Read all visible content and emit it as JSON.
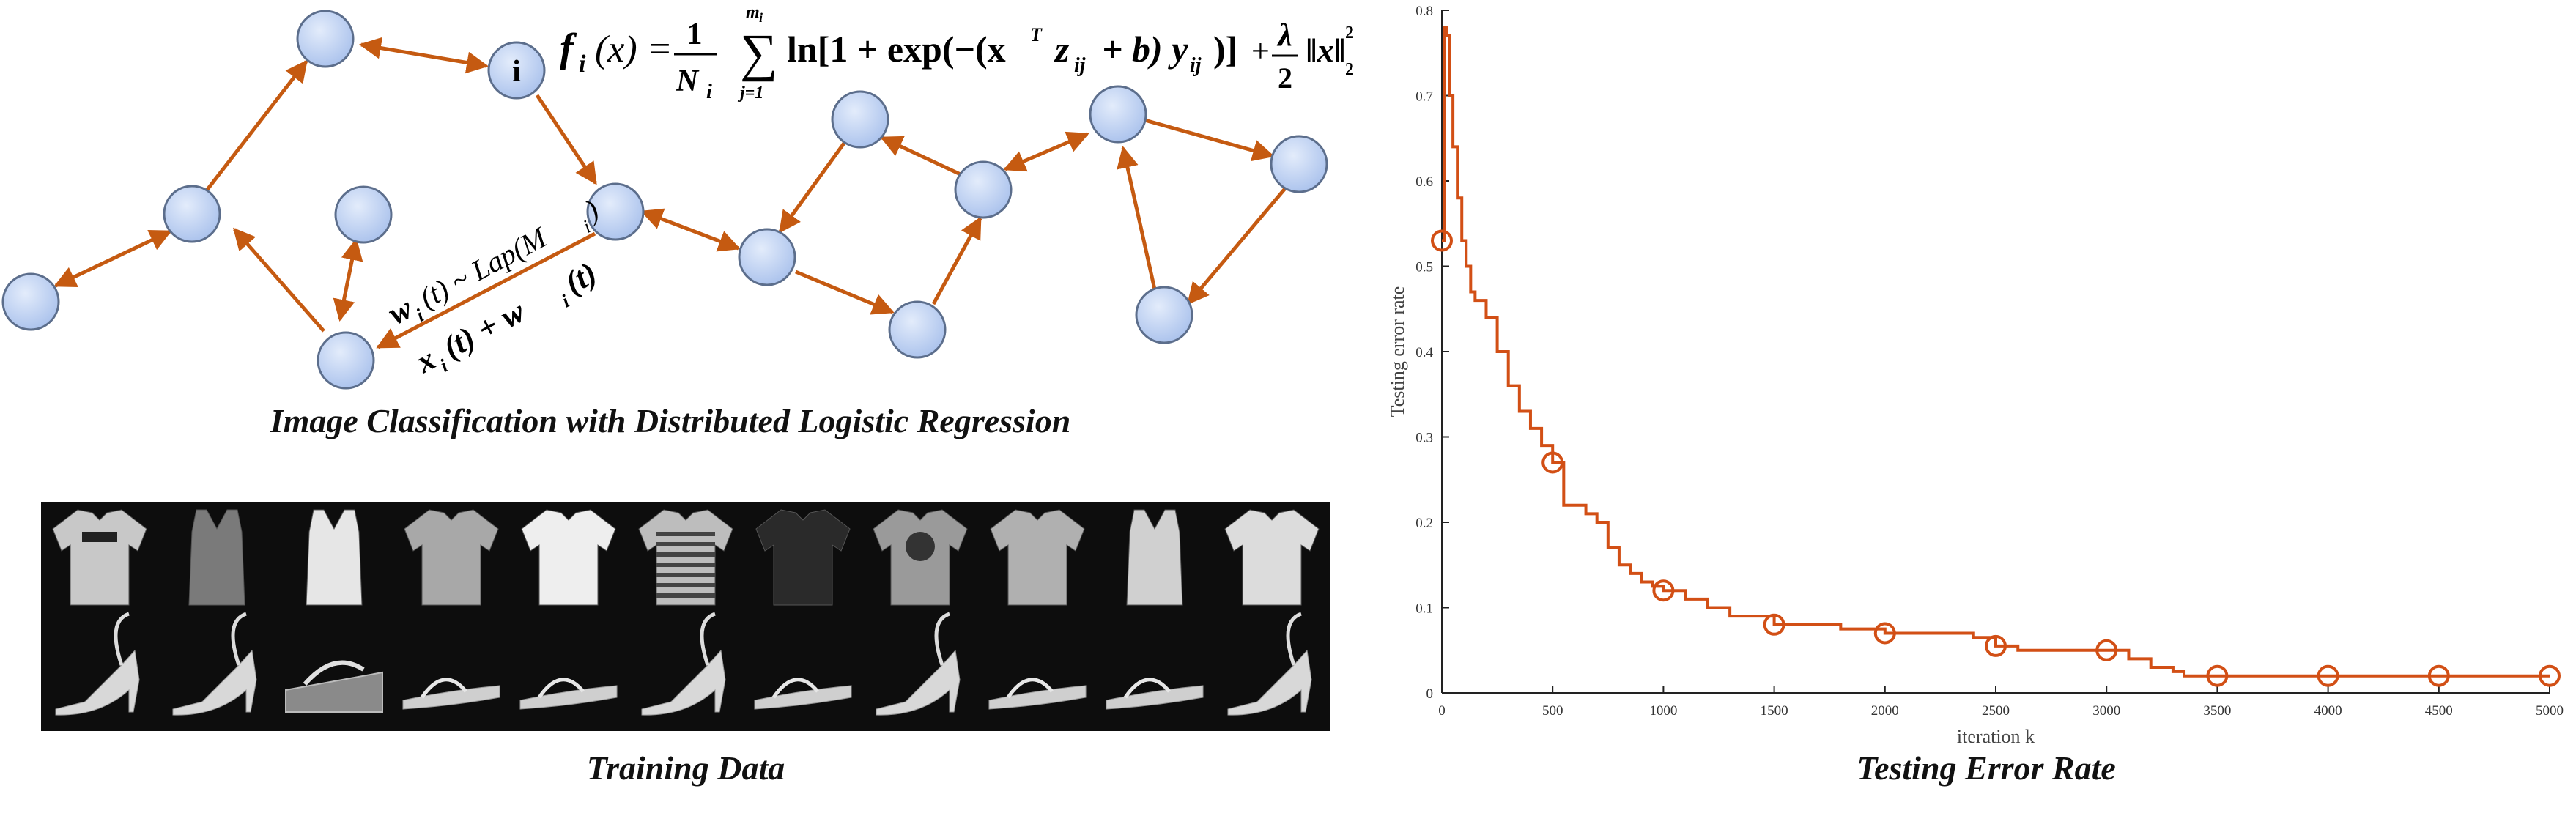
{
  "network": {
    "center_node_label": "i",
    "formula": {
      "lhs_f": "f",
      "lhs_sub": "i",
      "lhs_arg": "(x) =",
      "frac_num": "1",
      "frac_den": "N",
      "frac_den_sub": "i",
      "sum_top": "m",
      "sum_top_sub": "i",
      "sum_bottom": "j=1",
      "body": "ln[1 + exp(−(x",
      "sup_T": "T",
      "z_ij": "z",
      "ij": "ij",
      "plus_b": "+ b) y",
      "close": ")]",
      "reg_plus": "+",
      "lambda": "λ",
      "two": "2",
      "norm": "‖x‖",
      "norm_sup": "2",
      "norm_sub": "2"
    },
    "noise_label": "w",
    "noise_label_rest": "(t) ~ Lap(M",
    "noise_sub": "i",
    "noise_close": ")",
    "state_label": "x",
    "state_label_rest": "(t) + w",
    "state_sub": "i",
    "state_close": "(t)",
    "caption": "Image Classification with Distributed Logistic Regression",
    "node_color": "#b7ccf0",
    "edge_color": "#c55a11"
  },
  "training": {
    "caption": "Training Data",
    "top_row": [
      "t-shirt",
      "tank-top",
      "sleeveless-top",
      "t-shirt",
      "t-shirt",
      "striped-shirt",
      "dark-shirt",
      "logo-shirt",
      "patterned-shirt",
      "patterned-tank",
      "t-shirt"
    ],
    "bottom_row": [
      "high-heel",
      "platform-heel",
      "wedge",
      "sandal",
      "flat-sandal",
      "strappy-heel",
      "sandal",
      "heel",
      "thong-sandal",
      "flat",
      "heel"
    ]
  },
  "chart_caption": "Testing Error Rate",
  "chart_data": {
    "type": "line",
    "title": "",
    "xlabel": "iteration k",
    "ylabel": "Testing error rate",
    "xlim": [
      0,
      5000
    ],
    "ylim": [
      0,
      0.8
    ],
    "xticks": [
      0,
      500,
      1000,
      1500,
      2000,
      2500,
      3000,
      3500,
      4000,
      4500,
      5000
    ],
    "yticks": [
      0,
      0.1,
      0.2,
      0.3,
      0.4,
      0.5,
      0.6,
      0.7,
      0.8
    ],
    "color": "#d24f15",
    "series": [
      {
        "x": [
          0,
          10,
          20,
          35,
          50,
          70,
          90,
          110,
          130,
          150,
          200,
          250,
          300,
          350,
          400,
          450,
          500,
          550,
          600,
          650,
          700,
          750,
          800,
          850,
          900,
          950,
          1000,
          1100,
          1200,
          1300,
          1400,
          1500,
          1600,
          1800,
          2000,
          2200,
          2400,
          2500,
          2600,
          2800,
          3000,
          3100,
          3200,
          3300,
          3350,
          3500,
          4000,
          4500,
          5000
        ],
        "y": [
          0.53,
          0.78,
          0.77,
          0.7,
          0.64,
          0.58,
          0.53,
          0.5,
          0.47,
          0.46,
          0.44,
          0.4,
          0.36,
          0.33,
          0.31,
          0.29,
          0.27,
          0.22,
          0.22,
          0.21,
          0.2,
          0.17,
          0.15,
          0.14,
          0.13,
          0.125,
          0.12,
          0.11,
          0.1,
          0.09,
          0.09,
          0.08,
          0.08,
          0.075,
          0.07,
          0.07,
          0.065,
          0.055,
          0.05,
          0.05,
          0.05,
          0.04,
          0.03,
          0.025,
          0.02,
          0.02,
          0.02,
          0.02,
          0.02
        ],
        "markers_x": [
          0,
          500,
          1000,
          1500,
          2000,
          2500,
          3000,
          3500,
          4000,
          4500,
          5000
        ],
        "markers_y": [
          0.53,
          0.27,
          0.12,
          0.08,
          0.07,
          0.055,
          0.05,
          0.02,
          0.02,
          0.02,
          0.02
        ]
      }
    ]
  }
}
